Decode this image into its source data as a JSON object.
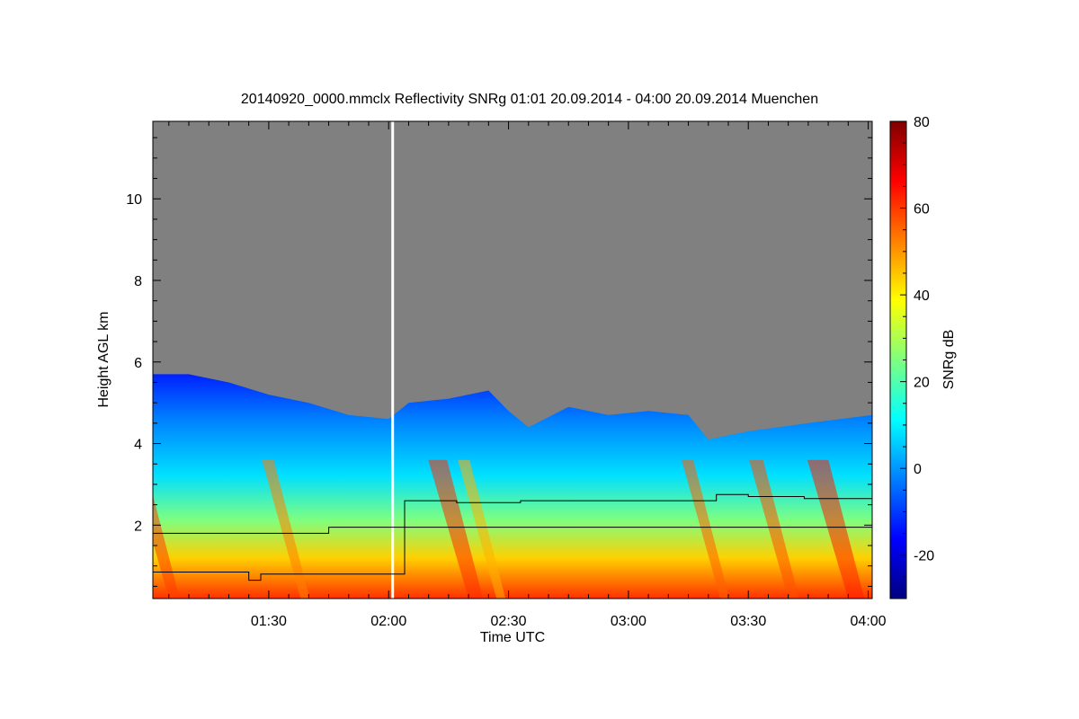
{
  "chart_data": {
    "type": "heatmap",
    "title": "20140920_0000.mmclx Reflectivity SNRg   01:01 20.09.2014 - 04:00 20.09.2014 Muenchen",
    "xlabel": "Time UTC",
    "ylabel": "Height AGL km",
    "colorbar_label": "SNRg dB",
    "xlim": [
      "01:01",
      "04:01"
    ],
    "ylim": [
      0.2,
      11.9
    ],
    "x_ticks": [
      "01:30",
      "02:00",
      "02:30",
      "03:00",
      "03:30",
      "04:00"
    ],
    "y_ticks": [
      "2",
      "4",
      "6",
      "8",
      "10"
    ],
    "colorbar_range": [
      -30,
      80
    ],
    "colorbar_ticks": [
      "-20",
      "0",
      "20",
      "40",
      "60",
      "80"
    ],
    "data_gap_time": "02:01",
    "background_color": "#808080",
    "colormap": [
      "#00007f",
      "#0000ff",
      "#007fff",
      "#00ffff",
      "#7fff7f",
      "#ffff00",
      "#ff7f00",
      "#ff0000",
      "#7f0000"
    ],
    "echo_top": [
      {
        "t": "01:01",
        "h": 5.7
      },
      {
        "t": "01:10",
        "h": 5.7
      },
      {
        "t": "01:20",
        "h": 5.5
      },
      {
        "t": "01:30",
        "h": 5.2
      },
      {
        "t": "01:40",
        "h": 5.0
      },
      {
        "t": "01:50",
        "h": 4.7
      },
      {
        "t": "02:00",
        "h": 4.6
      },
      {
        "t": "02:05",
        "h": 5.0
      },
      {
        "t": "02:15",
        "h": 5.1
      },
      {
        "t": "02:25",
        "h": 5.3
      },
      {
        "t": "02:30",
        "h": 4.8
      },
      {
        "t": "02:35",
        "h": 4.4
      },
      {
        "t": "02:45",
        "h": 4.9
      },
      {
        "t": "02:55",
        "h": 4.7
      },
      {
        "t": "03:05",
        "h": 4.8
      },
      {
        "t": "03:15",
        "h": 4.7
      },
      {
        "t": "03:20",
        "h": 4.1
      },
      {
        "t": "03:30",
        "h": 4.3
      },
      {
        "t": "03:45",
        "h": 4.5
      },
      {
        "t": "04:01",
        "h": 4.7
      }
    ],
    "series": [
      {
        "points": [
          {
            "t": "01:01",
            "h": 1.8
          },
          {
            "t": "01:45",
            "h": 1.8
          },
          {
            "t": "01:45",
            "h": 1.95
          },
          {
            "t": "04:01",
            "h": 1.95
          }
        ]
      },
      {
        "points": [
          {
            "t": "01:01",
            "h": 0.85
          },
          {
            "t": "01:25",
            "h": 0.85
          },
          {
            "t": "01:25",
            "h": 0.65
          },
          {
            "t": "01:28",
            "h": 0.65
          },
          {
            "t": "01:28",
            "h": 0.8
          },
          {
            "t": "02:04",
            "h": 0.8
          },
          {
            "t": "02:04",
            "h": 2.6
          },
          {
            "t": "02:17",
            "h": 2.6
          },
          {
            "t": "02:17",
            "h": 2.55
          },
          {
            "t": "02:33",
            "h": 2.55
          },
          {
            "t": "02:33",
            "h": 2.6
          },
          {
            "t": "03:22",
            "h": 2.6
          },
          {
            "t": "03:22",
            "h": 2.75
          },
          {
            "t": "03:30",
            "h": 2.75
          },
          {
            "t": "03:30",
            "h": 2.7
          },
          {
            "t": "03:44",
            "h": 2.7
          },
          {
            "t": "03:44",
            "h": 2.65
          },
          {
            "t": "04:01",
            "h": 2.65
          }
        ]
      }
    ]
  }
}
